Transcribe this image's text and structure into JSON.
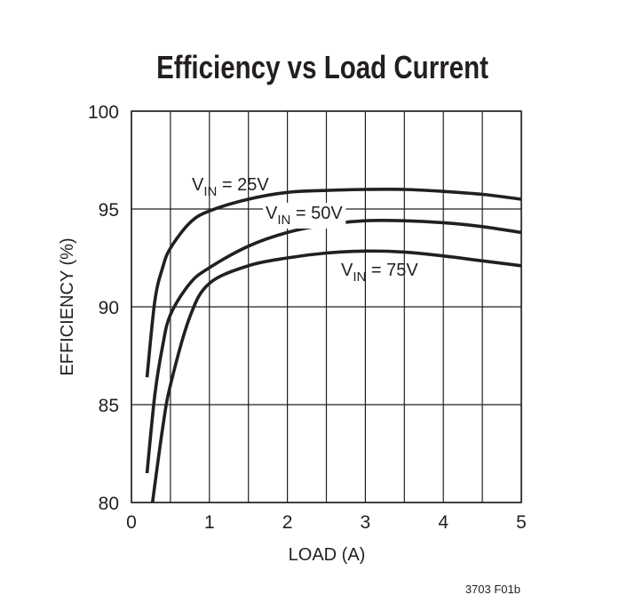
{
  "chart_data": {
    "type": "line",
    "title": "Efficiency vs Load Current",
    "x_label": "LOAD (A)",
    "y_label": "EFFICIENCY (%)",
    "footnote": "3703 F01b",
    "xlim": [
      0,
      5
    ],
    "xticks": [
      0,
      1,
      2,
      3,
      4,
      5
    ],
    "xminorgrid": [
      0.5,
      1.5,
      2.5,
      3.5,
      4.5
    ],
    "ylim": [
      80,
      100
    ],
    "yticks": [
      80,
      85,
      90,
      95,
      100
    ],
    "grid": true,
    "series": [
      {
        "name_parts": [
          "V",
          "IN",
          " = 25V"
        ],
        "color": "#231f20",
        "x": [
          0.2,
          0.3,
          0.4,
          0.5,
          0.75,
          1,
          1.5,
          2,
          2.5,
          3,
          3.5,
          4,
          4.5,
          5
        ],
        "values": [
          86.4,
          90.3,
          92.0,
          93.0,
          94.3,
          94.9,
          95.5,
          95.85,
          95.95,
          96.0,
          96.0,
          95.9,
          95.75,
          95.5
        ]
      },
      {
        "name_parts": [
          "V",
          "IN",
          " = 50V"
        ],
        "color": "#231f20",
        "x": [
          0.2,
          0.3,
          0.4,
          0.5,
          0.75,
          1,
          1.5,
          2,
          2.5,
          3,
          3.5,
          4,
          4.5,
          5
        ],
        "values": [
          81.5,
          85.5,
          88.0,
          89.6,
          91.2,
          92.0,
          93.1,
          93.8,
          94.2,
          94.4,
          94.4,
          94.3,
          94.1,
          93.8
        ]
      },
      {
        "name_parts": [
          "V",
          "IN",
          " = 75V"
        ],
        "color": "#231f20",
        "x": [
          0.27,
          0.4,
          0.5,
          0.75,
          1,
          1.5,
          2,
          2.5,
          3,
          3.5,
          4,
          4.5,
          5
        ],
        "values": [
          80,
          83.8,
          86.0,
          89.5,
          91.2,
          92.1,
          92.5,
          92.75,
          92.85,
          92.8,
          92.6,
          92.35,
          92.1
        ]
      }
    ]
  }
}
